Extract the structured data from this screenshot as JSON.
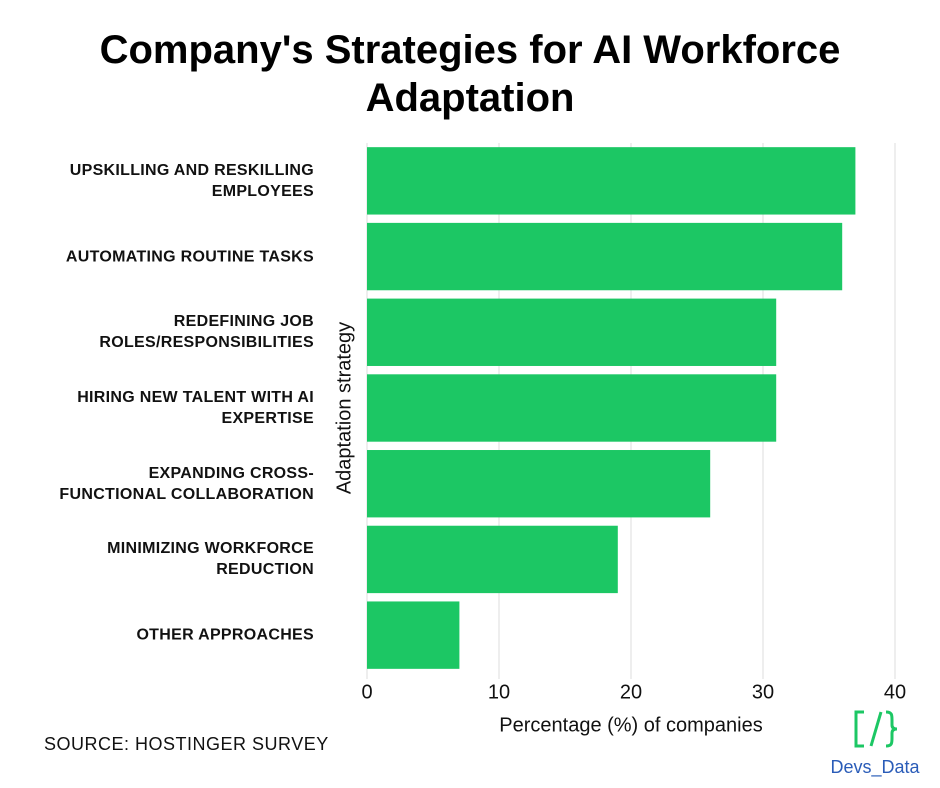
{
  "chart_data": {
    "type": "barh",
    "title": "Company's Strategies for AI Workforce Adaptation",
    "categories": [
      "UPSKILLING AND RESKILLING EMPLOYEES",
      "AUTOMATING ROUTINE TASKS",
      "REDEFINING JOB ROLES/RESPONSIBILITIES",
      "HIRING NEW TALENT WITH AI EXPERTISE",
      "EXPANDING CROSS-FUNCTIONAL COLLABORATION",
      "MINIMIZING WORKFORCE REDUCTION",
      "OTHER APPROACHES"
    ],
    "values": [
      37,
      36,
      31,
      31,
      26,
      19,
      7
    ],
    "color": "#1cc764",
    "xlim": [
      0,
      40
    ],
    "xticks": [
      0,
      10,
      20,
      30,
      40
    ],
    "grid": true,
    "x_label": "Percentage (%) of companies",
    "y_label": "Adaptation strategy",
    "source": "SOURCE: HOSTINGER SURVEY",
    "brand": "Devs_Data"
  }
}
